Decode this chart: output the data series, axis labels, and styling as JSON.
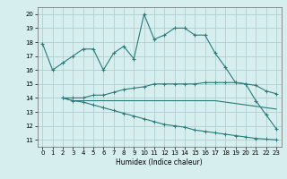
{
  "title": "",
  "xlabel": "Humidex (Indice chaleur)",
  "bg_color": "#d6eeee",
  "grid_color": "#b0d0d0",
  "line_color": "#2a7a7a",
  "xlim": [
    -0.5,
    23.5
  ],
  "ylim": [
    10.5,
    20.5
  ],
  "xticks": [
    0,
    1,
    2,
    3,
    4,
    5,
    6,
    7,
    8,
    9,
    10,
    11,
    12,
    13,
    14,
    15,
    16,
    17,
    18,
    19,
    20,
    21,
    22,
    23
  ],
  "yticks": [
    11,
    12,
    13,
    14,
    15,
    16,
    17,
    18,
    19,
    20
  ],
  "line1_x": [
    0,
    1,
    2,
    3,
    4,
    5,
    6,
    7,
    8,
    9,
    10,
    11,
    12,
    13,
    14,
    15,
    16,
    17,
    18,
    19,
    20,
    21,
    22,
    23
  ],
  "line1_y": [
    17.9,
    16.0,
    16.5,
    17.0,
    17.5,
    17.5,
    16.0,
    17.2,
    17.7,
    16.8,
    20.0,
    18.2,
    18.5,
    19.0,
    19.0,
    18.5,
    18.5,
    17.2,
    16.2,
    15.1,
    15.0,
    13.8,
    12.8,
    11.8
  ],
  "line2_x": [
    2,
    3,
    4,
    5,
    6,
    7,
    8,
    9,
    10,
    11,
    12,
    13,
    14,
    15,
    16,
    17,
    18,
    19,
    20,
    21,
    22,
    23
  ],
  "line2_y": [
    14.0,
    14.0,
    14.0,
    14.2,
    14.2,
    14.4,
    14.6,
    14.7,
    14.8,
    15.0,
    15.0,
    15.0,
    15.0,
    15.0,
    15.1,
    15.1,
    15.1,
    15.1,
    15.0,
    14.9,
    14.5,
    14.3
  ],
  "line3_x": [
    2,
    3,
    4,
    5,
    6,
    7,
    8,
    9,
    10,
    11,
    12,
    13,
    14,
    15,
    16,
    17,
    18,
    19,
    20,
    21,
    22,
    23
  ],
  "line3_y": [
    14.0,
    13.8,
    13.8,
    13.8,
    13.8,
    13.8,
    13.8,
    13.8,
    13.8,
    13.8,
    13.8,
    13.8,
    13.8,
    13.8,
    13.8,
    13.8,
    13.7,
    13.6,
    13.5,
    13.4,
    13.3,
    13.2
  ],
  "line4_x": [
    2,
    3,
    4,
    5,
    6,
    7,
    8,
    9,
    10,
    11,
    12,
    13,
    14,
    15,
    16,
    17,
    18,
    19,
    20,
    21,
    22,
    23
  ],
  "line4_y": [
    14.0,
    13.8,
    13.7,
    13.5,
    13.3,
    13.1,
    12.9,
    12.7,
    12.5,
    12.3,
    12.1,
    12.0,
    11.9,
    11.7,
    11.6,
    11.5,
    11.4,
    11.3,
    11.2,
    11.1,
    11.05,
    11.0
  ]
}
